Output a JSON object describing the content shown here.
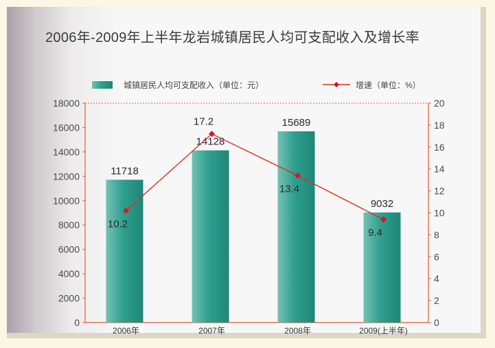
{
  "chart_data": {
    "type": "bar",
    "title": "2006年-2009年上半年龙岩城镇居民人均可支配收入及增长率",
    "categories": [
      "2006年",
      "2007年",
      "2008年",
      "2009(上半年)"
    ],
    "series": [
      {
        "name": "城镇居民人均可支配收入（单位：元）",
        "type": "bar",
        "axis": "left",
        "values": [
          11718,
          14128,
          15689,
          9032
        ]
      },
      {
        "name": "增速（单位：%）",
        "type": "line",
        "axis": "right",
        "values": [
          10.2,
          17.2,
          13.4,
          9.4
        ]
      }
    ],
    "y_left": {
      "lim": [
        0,
        18000
      ],
      "ticks": [
        0,
        2000,
        4000,
        6000,
        8000,
        10000,
        12000,
        14000,
        16000,
        18000
      ]
    },
    "y_right": {
      "lim": [
        0,
        20
      ],
      "ticks": [
        0,
        2,
        4,
        6,
        8,
        10,
        12,
        14,
        16,
        18,
        20
      ]
    },
    "legend_position": "top",
    "colors": {
      "bar": "#2e9f8f",
      "line": "#e03020",
      "marker": "#e0102a",
      "axis": "#e45a3a"
    }
  }
}
